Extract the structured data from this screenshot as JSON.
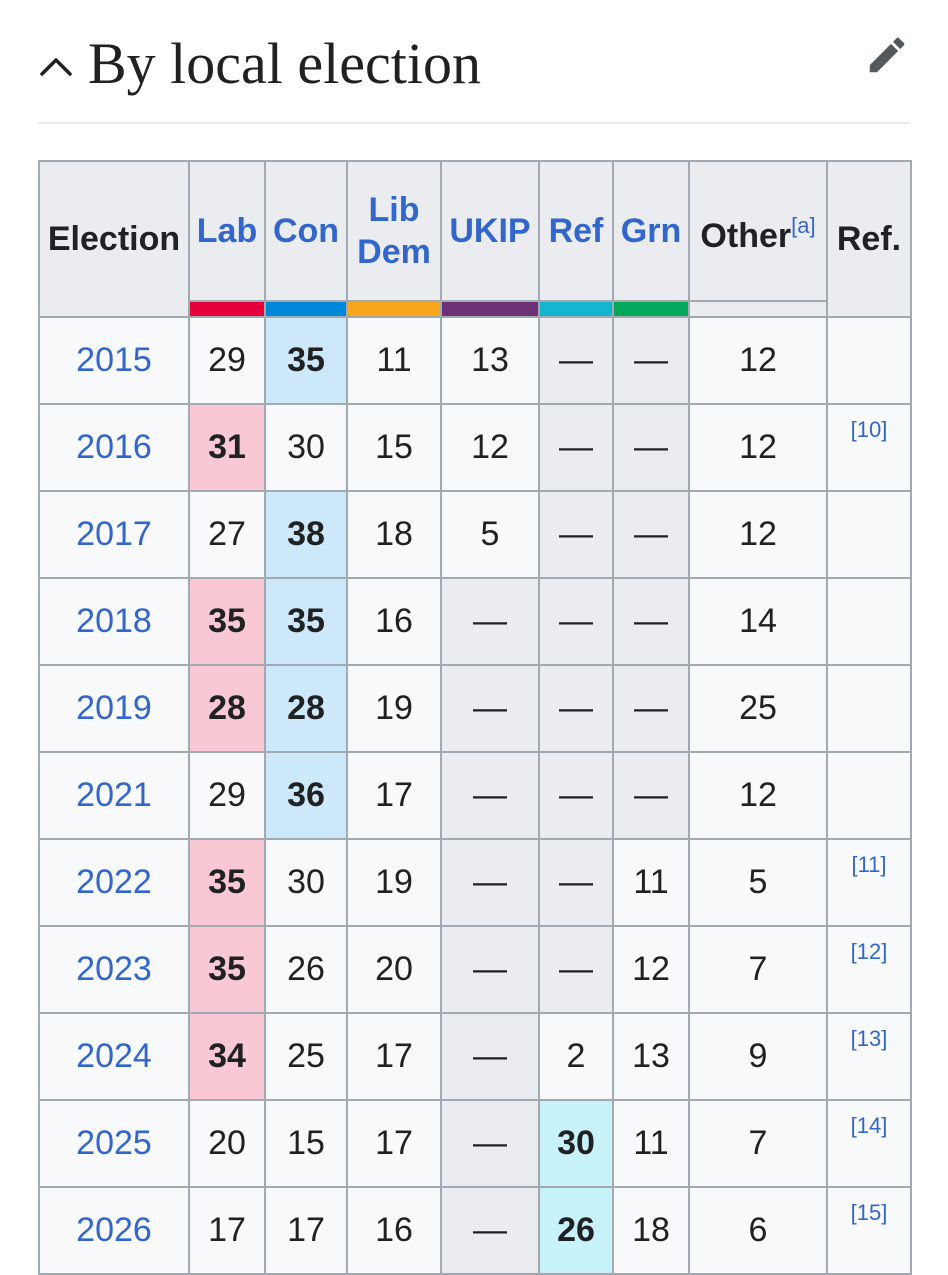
{
  "header": {
    "title": "By local election"
  },
  "table": {
    "columns": {
      "election": "Election",
      "lab": "Lab",
      "con": "Con",
      "lib_dem_1": "Lib",
      "lib_dem_2": "Dem",
      "ukip": "UKIP",
      "ref": "Ref",
      "grn": "Grn",
      "other": "Other",
      "other_note": "[a]",
      "ref_col": "Ref."
    },
    "party_colors": {
      "lab": "#e4003b",
      "con": "#0087dc",
      "lib_dem": "#faa61a",
      "ukip": "#6d3177",
      "ref": "#12b6cf",
      "grn": "#02a95b"
    },
    "win_colors": {
      "lab": "#f8c8d4",
      "con": "#cde8f8",
      "ref": "#c8f2fa"
    },
    "rows": [
      {
        "year": "2015",
        "lab": "29",
        "con": "35",
        "ld": "11",
        "ukip": "13",
        "ref": "—",
        "grn": "—",
        "other": "12",
        "cite": "",
        "win": "con"
      },
      {
        "year": "2016",
        "lab": "31",
        "con": "30",
        "ld": "15",
        "ukip": "12",
        "ref": "—",
        "grn": "—",
        "other": "12",
        "cite": "[10]",
        "win": "lab"
      },
      {
        "year": "2017",
        "lab": "27",
        "con": "38",
        "ld": "18",
        "ukip": "5",
        "ref": "—",
        "grn": "—",
        "other": "12",
        "cite": "",
        "win": "con"
      },
      {
        "year": "2018",
        "lab": "35",
        "con": "35",
        "ld": "16",
        "ukip": "—",
        "ref": "—",
        "grn": "—",
        "other": "14",
        "cite": "",
        "win": "lab,con"
      },
      {
        "year": "2019",
        "lab": "28",
        "con": "28",
        "ld": "19",
        "ukip": "—",
        "ref": "—",
        "grn": "—",
        "other": "25",
        "cite": "",
        "win": "lab,con"
      },
      {
        "year": "2021",
        "lab": "29",
        "con": "36",
        "ld": "17",
        "ukip": "—",
        "ref": "—",
        "grn": "—",
        "other": "12",
        "cite": "",
        "win": "con"
      },
      {
        "year": "2022",
        "lab": "35",
        "con": "30",
        "ld": "19",
        "ukip": "—",
        "ref": "—",
        "grn": "11",
        "other": "5",
        "cite": "[11]",
        "win": "lab"
      },
      {
        "year": "2023",
        "lab": "35",
        "con": "26",
        "ld": "20",
        "ukip": "—",
        "ref": "—",
        "grn": "12",
        "other": "7",
        "cite": "[12]",
        "win": "lab"
      },
      {
        "year": "2024",
        "lab": "34",
        "con": "25",
        "ld": "17",
        "ukip": "—",
        "ref": "2",
        "grn": "13",
        "other": "9",
        "cite": "[13]",
        "win": "lab"
      },
      {
        "year": "2025",
        "lab": "20",
        "con": "15",
        "ld": "17",
        "ukip": "—",
        "ref": "30",
        "grn": "11",
        "other": "7",
        "cite": "[14]",
        "win": "ref"
      },
      {
        "year": "2026",
        "lab": "17",
        "con": "17",
        "ld": "16",
        "ukip": "—",
        "ref": "26",
        "grn": "18",
        "other": "6",
        "cite": "[15]",
        "win": "ref"
      }
    ]
  }
}
